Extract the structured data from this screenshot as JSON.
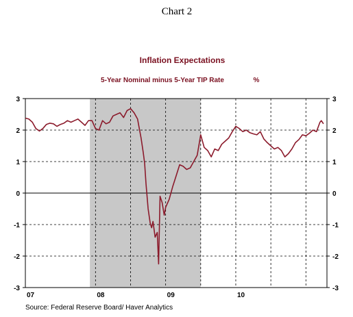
{
  "caption": "Chart 2",
  "source": "Source:  Federal Reserve Board/ Haver Analytics",
  "chart_data": {
    "type": "line",
    "title": "Inflation Expectations",
    "subtitle": "5-Year Nominal minus 5-Year TIP Rate",
    "unit": "%",
    "ylim": [
      -3,
      3
    ],
    "y_ticks": [
      3,
      2,
      1,
      0,
      -1,
      -2,
      -3
    ],
    "y_tick_labels": [
      "3",
      "2",
      "1",
      "0",
      "-1",
      "-2",
      "-3"
    ],
    "xlim": [
      2007.0,
      2011.3
    ],
    "x_tick_labels": [
      {
        "label": "07",
        "x": 2007.0
      },
      {
        "label": "08",
        "x": 2008.0
      },
      {
        "label": "09",
        "x": 2009.0
      },
      {
        "label": "10",
        "x": 2010.0
      }
    ],
    "vertical_gridlines": [
      2008.0,
      2008.5,
      2009.0,
      2009.5,
      2010.0,
      2010.5,
      2011.0
    ],
    "horizontal_gridlines": [
      3,
      2,
      1,
      0,
      -1,
      -2,
      -3
    ],
    "shaded_region": {
      "start": 2007.92,
      "end": 2009.5,
      "color": "#c8c8c8"
    },
    "line_color": "#8b1a2b",
    "series": [
      {
        "name": "5-Year Nominal minus 5-Year TIP Rate",
        "x": [
          2007.0,
          2007.05,
          2007.1,
          2007.15,
          2007.2,
          2007.25,
          2007.3,
          2007.35,
          2007.4,
          2007.45,
          2007.5,
          2007.55,
          2007.6,
          2007.65,
          2007.7,
          2007.75,
          2007.8,
          2007.85,
          2007.9,
          2007.95,
          2008.0,
          2008.05,
          2008.1,
          2008.15,
          2008.2,
          2008.25,
          2008.3,
          2008.35,
          2008.4,
          2008.45,
          2008.5,
          2008.55,
          2008.6,
          2008.62,
          2008.65,
          2008.68,
          2008.7,
          2008.72,
          2008.75,
          2008.78,
          2008.8,
          2008.82,
          2008.85,
          2008.88,
          2008.9,
          2008.92,
          2008.95,
          2008.98,
          2009.0,
          2009.05,
          2009.1,
          2009.15,
          2009.2,
          2009.25,
          2009.3,
          2009.35,
          2009.4,
          2009.45,
          2009.5,
          2009.55,
          2009.6,
          2009.65,
          2009.7,
          2009.75,
          2009.8,
          2009.85,
          2009.9,
          2009.95,
          2010.0,
          2010.05,
          2010.1,
          2010.15,
          2010.2,
          2010.25,
          2010.3,
          2010.35,
          2010.4,
          2010.45,
          2010.5,
          2010.55,
          2010.6,
          2010.65,
          2010.7,
          2010.75,
          2010.8,
          2010.85,
          2010.9,
          2010.95,
          2011.0,
          2011.05,
          2011.1,
          2011.15,
          2011.2,
          2011.22,
          2011.25
        ],
        "values": [
          2.38,
          2.35,
          2.25,
          2.05,
          1.97,
          2.05,
          2.18,
          2.22,
          2.2,
          2.12,
          2.18,
          2.22,
          2.3,
          2.25,
          2.3,
          2.35,
          2.25,
          2.15,
          2.3,
          2.3,
          2.05,
          2.0,
          2.3,
          2.2,
          2.25,
          2.45,
          2.5,
          2.55,
          2.4,
          2.62,
          2.68,
          2.55,
          2.35,
          2.1,
          1.75,
          1.3,
          0.95,
          0.3,
          -0.5,
          -0.95,
          -1.1,
          -0.9,
          -1.4,
          -1.25,
          -2.25,
          -0.1,
          -0.3,
          -0.7,
          -0.45,
          -0.2,
          0.2,
          0.55,
          0.9,
          0.85,
          0.75,
          0.8,
          1.0,
          1.2,
          1.85,
          1.45,
          1.35,
          1.15,
          1.4,
          1.35,
          1.55,
          1.65,
          1.75,
          1.95,
          2.12,
          2.05,
          1.95,
          2.0,
          1.92,
          1.88,
          1.85,
          1.95,
          1.72,
          1.6,
          1.5,
          1.4,
          1.45,
          1.35,
          1.15,
          1.25,
          1.4,
          1.6,
          1.7,
          1.85,
          1.82,
          1.9,
          2.0,
          1.95,
          2.25,
          2.3,
          2.2
        ]
      }
    ]
  }
}
